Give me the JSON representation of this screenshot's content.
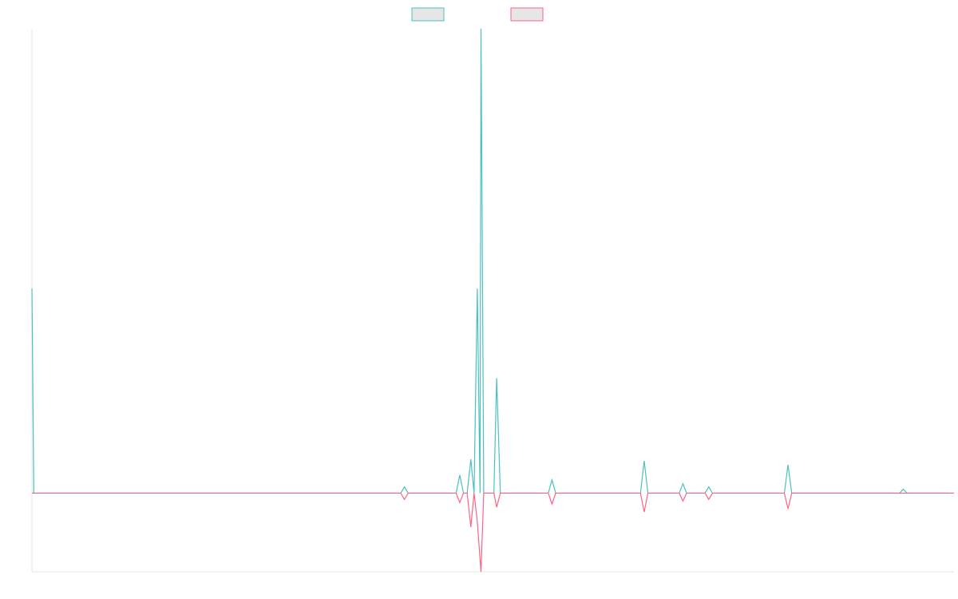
{
  "chart_data": {
    "type": "line",
    "title": "",
    "xlabel": "",
    "ylabel": "",
    "grid": false,
    "legend_position": "top",
    "xlim": [
      0,
      100
    ],
    "ylim": [
      -1.0,
      5.9
    ],
    "series": [
      {
        "name": "",
        "color": "#4bc0c0",
        "fill": "#e6e6e6",
        "points": [
          [
            0,
            2.6
          ],
          [
            0.2,
            0
          ],
          [
            40,
            0
          ],
          [
            40.4,
            0.08
          ],
          [
            40.8,
            0
          ],
          [
            46,
            0
          ],
          [
            46.4,
            0.23
          ],
          [
            46.8,
            0
          ],
          [
            47.2,
            0
          ],
          [
            47.6,
            0.43
          ],
          [
            47.95,
            0
          ],
          [
            48.3,
            2.6
          ],
          [
            48.6,
            0
          ],
          [
            48.7,
            5.9
          ],
          [
            49.0,
            0
          ],
          [
            50.1,
            0
          ],
          [
            50.4,
            1.46
          ],
          [
            50.8,
            0
          ],
          [
            56,
            0
          ],
          [
            56.4,
            0.17
          ],
          [
            56.8,
            0
          ],
          [
            66,
            0
          ],
          [
            66.4,
            0.41
          ],
          [
            66.8,
            0
          ],
          [
            70.2,
            0
          ],
          [
            70.6,
            0.12
          ],
          [
            71.0,
            0
          ],
          [
            73.0,
            0
          ],
          [
            73.4,
            0.08
          ],
          [
            73.8,
            0
          ],
          [
            81.6,
            0
          ],
          [
            82.0,
            0.36
          ],
          [
            82.4,
            0
          ],
          [
            94.1,
            0
          ],
          [
            94.5,
            0.05
          ],
          [
            94.9,
            0
          ],
          [
            100,
            0
          ]
        ]
      },
      {
        "name": "",
        "color": "#ff6384",
        "fill": "#e6e6e6",
        "points": [
          [
            0,
            0
          ],
          [
            40,
            0
          ],
          [
            40.4,
            -0.08
          ],
          [
            40.8,
            0
          ],
          [
            46,
            0
          ],
          [
            46.4,
            -0.12
          ],
          [
            46.8,
            0
          ],
          [
            47.2,
            0
          ],
          [
            47.6,
            -0.43
          ],
          [
            47.95,
            0
          ],
          [
            48.3,
            -0.36
          ],
          [
            48.7,
            -1.0
          ],
          [
            49.0,
            0
          ],
          [
            50.1,
            0
          ],
          [
            50.4,
            -0.18
          ],
          [
            50.8,
            0
          ],
          [
            56,
            0
          ],
          [
            56.4,
            -0.14
          ],
          [
            56.8,
            0
          ],
          [
            66,
            0
          ],
          [
            66.4,
            -0.24
          ],
          [
            66.8,
            0
          ],
          [
            70.2,
            0
          ],
          [
            70.6,
            -0.1
          ],
          [
            71.0,
            0
          ],
          [
            73.0,
            0
          ],
          [
            73.4,
            -0.08
          ],
          [
            73.8,
            0
          ],
          [
            81.6,
            0
          ],
          [
            82.0,
            -0.2
          ],
          [
            82.4,
            0
          ],
          [
            100,
            0
          ]
        ]
      }
    ]
  }
}
